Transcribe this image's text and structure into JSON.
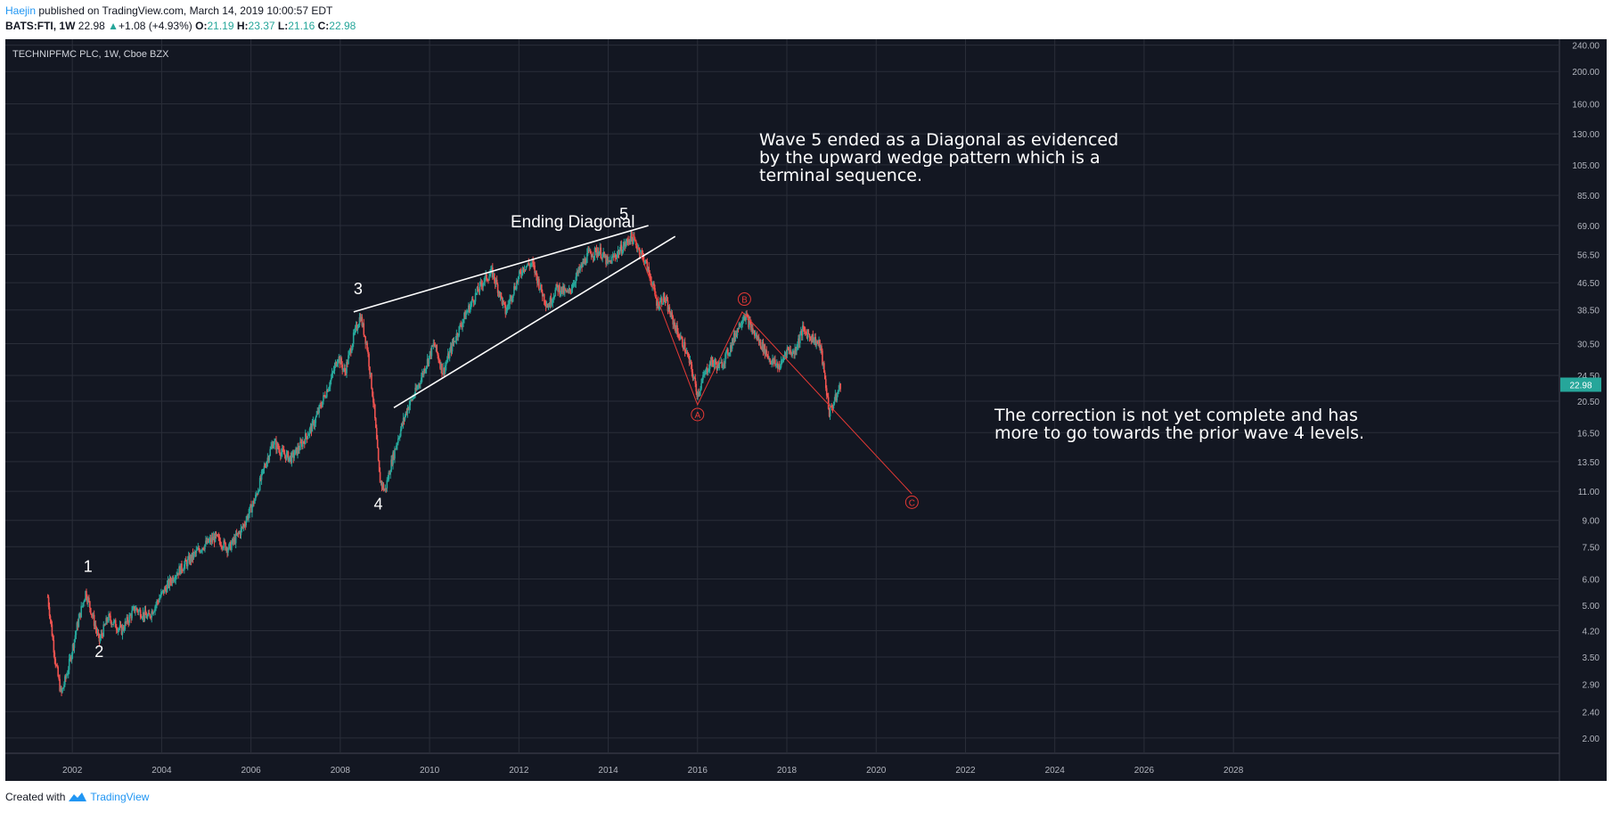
{
  "header": {
    "author": "Haejin",
    "published": "published on TradingView.com, March 14, 2019 10:00:57 EDT",
    "symbol": "BATS:FTI, 1W",
    "last": "22.98",
    "change": "+1.08 (+4.93%)",
    "o_label": "O:",
    "o": "21.19",
    "h_label": "H:",
    "h": "23.37",
    "l_label": "L:",
    "l": "21.16",
    "c_label": "C:",
    "c": "22.98"
  },
  "footer": {
    "created_with": "Created with",
    "brand": "TradingView"
  },
  "colors": {
    "background": "#131722",
    "grid": "#2a2e39",
    "up": "#26a69a",
    "down": "#ef5350",
    "annotation": "#ffffff",
    "correction": "#e53935",
    "price_tag": "#26a69a"
  },
  "chart_data": {
    "type": "candlestick",
    "title": "TECHNIPFMC PLC, 1W, Cboe BZX",
    "scale": "log",
    "grid": true,
    "ylim": [
      1.8,
      250
    ],
    "xlim": [
      2000.5,
      2035.3
    ],
    "y_ticks": [
      "2.00",
      "2.40",
      "2.90",
      "3.50",
      "4.20",
      "5.00",
      "6.00",
      "7.50",
      "9.00",
      "11.00",
      "13.50",
      "16.50",
      "20.50",
      "24.50",
      "30.50",
      "38.50",
      "46.50",
      "56.50",
      "69.00",
      "85.00",
      "105.00",
      "130.00",
      "160.00",
      "200.00",
      "240.00"
    ],
    "x_ticks": [
      "2002",
      "2004",
      "2006",
      "2008",
      "2010",
      "2012",
      "2014",
      "2016",
      "2018",
      "2020",
      "2022",
      "2024",
      "2026",
      "2028"
    ],
    "last_price": "22.98",
    "price_path": [
      [
        2001.45,
        5.3
      ],
      [
        2001.62,
        3.4
      ],
      [
        2001.75,
        2.7
      ],
      [
        2001.9,
        3.2
      ],
      [
        2002.1,
        4.3
      ],
      [
        2002.3,
        5.5
      ],
      [
        2002.5,
        4.4
      ],
      [
        2002.6,
        3.9
      ],
      [
        2002.8,
        4.6
      ],
      [
        2003.1,
        4.2
      ],
      [
        2003.4,
        4.9
      ],
      [
        2003.7,
        4.6
      ],
      [
        2004.0,
        5.4
      ],
      [
        2004.3,
        6.2
      ],
      [
        2004.6,
        6.8
      ],
      [
        2004.9,
        7.5
      ],
      [
        2005.2,
        8.0
      ],
      [
        2005.5,
        7.4
      ],
      [
        2005.8,
        8.5
      ],
      [
        2006.1,
        10.5
      ],
      [
        2006.3,
        13.0
      ],
      [
        2006.5,
        15.5
      ],
      [
        2006.7,
        14.3
      ],
      [
        2006.9,
        13.8
      ],
      [
        2007.1,
        15.0
      ],
      [
        2007.4,
        17.5
      ],
      [
        2007.6,
        20.5
      ],
      [
        2007.8,
        24.0
      ],
      [
        2007.95,
        28.0
      ],
      [
        2008.1,
        25.0
      ],
      [
        2008.3,
        32.0
      ],
      [
        2008.45,
        37.0
      ],
      [
        2008.6,
        30.0
      ],
      [
        2008.75,
        20.0
      ],
      [
        2008.88,
        12.0
      ],
      [
        2009.0,
        11.0
      ],
      [
        2009.15,
        13.5
      ],
      [
        2009.3,
        16.0
      ],
      [
        2009.5,
        19.5
      ],
      [
        2009.7,
        22.0
      ],
      [
        2009.9,
        26.0
      ],
      [
        2010.1,
        30.5
      ],
      [
        2010.3,
        25.0
      ],
      [
        2010.5,
        30.0
      ],
      [
        2010.75,
        36.0
      ],
      [
        2011.0,
        42.0
      ],
      [
        2011.2,
        47.0
      ],
      [
        2011.4,
        50.0
      ],
      [
        2011.55,
        44.0
      ],
      [
        2011.7,
        38.0
      ],
      [
        2011.9,
        45.0
      ],
      [
        2012.1,
        52.0
      ],
      [
        2012.3,
        53.0
      ],
      [
        2012.5,
        44.0
      ],
      [
        2012.65,
        39.5
      ],
      [
        2012.85,
        45.0
      ],
      [
        2013.1,
        43.0
      ],
      [
        2013.3,
        49.0
      ],
      [
        2013.55,
        56.5
      ],
      [
        2013.8,
        58.0
      ],
      [
        2014.0,
        53.0
      ],
      [
        2014.2,
        57.0
      ],
      [
        2014.4,
        61.0
      ],
      [
        2014.5,
        64.0
      ],
      [
        2014.65,
        60.0
      ],
      [
        2014.8,
        55.0
      ],
      [
        2014.95,
        48.0
      ],
      [
        2015.1,
        40.0
      ],
      [
        2015.25,
        42.0
      ],
      [
        2015.4,
        37.0
      ],
      [
        2015.55,
        33.0
      ],
      [
        2015.7,
        30.0
      ],
      [
        2015.85,
        26.0
      ],
      [
        2016.0,
        21.5
      ],
      [
        2016.15,
        24.5
      ],
      [
        2016.3,
        27.0
      ],
      [
        2016.5,
        26.0
      ],
      [
        2016.7,
        29.0
      ],
      [
        2016.9,
        34.0
      ],
      [
        2017.05,
        37.5
      ],
      [
        2017.25,
        33.0
      ],
      [
        2017.45,
        30.0
      ],
      [
        2017.65,
        27.0
      ],
      [
        2017.85,
        26.0
      ],
      [
        2018.0,
        29.5
      ],
      [
        2018.15,
        28.5
      ],
      [
        2018.35,
        33.5
      ],
      [
        2018.55,
        32.0
      ],
      [
        2018.75,
        30.0
      ],
      [
        2018.85,
        24.0
      ],
      [
        2018.95,
        19.0
      ],
      [
        2019.1,
        21.0
      ],
      [
        2019.2,
        22.98
      ]
    ]
  },
  "annotations": {
    "wave_labels": [
      {
        "text": "1",
        "x": 2002.35,
        "y": 6.3
      },
      {
        "text": "2",
        "x": 2002.6,
        "y": 3.5
      },
      {
        "text": "3",
        "x": 2008.4,
        "y": 43.0
      },
      {
        "text": "4",
        "x": 2008.85,
        "y": 9.7
      },
      {
        "text": "5",
        "x": 2014.35,
        "y": 72.0
      }
    ],
    "ending_diagonal": "Ending Diagonal",
    "wedge_upper": [
      [
        2008.3,
        38.0
      ],
      [
        2014.9,
        69.0
      ]
    ],
    "wedge_lower": [
      [
        2009.2,
        19.6
      ],
      [
        2015.5,
        64.0
      ]
    ],
    "abc_labels": [
      {
        "text": "A",
        "x": 2016.0,
        "y": 18.7
      },
      {
        "text": "B",
        "x": 2017.05,
        "y": 41.5
      },
      {
        "text": "C",
        "x": 2020.8,
        "y": 10.2
      }
    ],
    "abc_path": [
      [
        2014.55,
        65.0
      ],
      [
        2016.0,
        20.0
      ],
      [
        2017.0,
        38.0
      ],
      [
        2020.8,
        10.8
      ]
    ],
    "note_wave5": [
      "Wave 5 ended as a Diagonal as evidenced",
      "by the upward wedge pattern which is a",
      "terminal sequence."
    ],
    "note_correction": [
      "The correction is not yet complete and has",
      "more to go towards the prior wave 4 levels."
    ]
  }
}
